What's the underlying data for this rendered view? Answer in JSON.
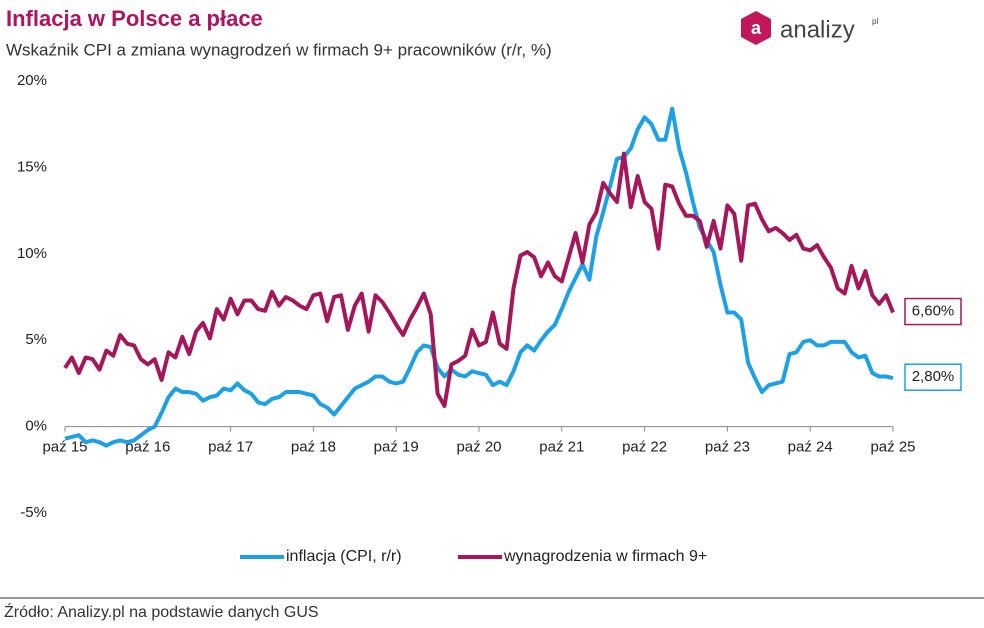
{
  "chart_data": {
    "type": "line",
    "title": "Inflacja w Polsce a płace",
    "subtitle": "Wskaźnik CPI a zmiana wynagrodzeń w firmach 9+ pracowników (r/r, %)",
    "source": "Źródło: Analizy.pl na podstawie danych GUS",
    "logo_icon": "a",
    "logo_text": "analizy",
    "logo_suffix": "pl",
    "categories": [
      "paź 15",
      null,
      null,
      null,
      null,
      null,
      null,
      null,
      null,
      null,
      null,
      null,
      "paź 16",
      null,
      null,
      null,
      null,
      null,
      null,
      null,
      null,
      null,
      null,
      null,
      "paź 17",
      null,
      null,
      null,
      null,
      null,
      null,
      null,
      null,
      null,
      null,
      null,
      "paź 18",
      null,
      null,
      null,
      null,
      null,
      null,
      null,
      null,
      null,
      null,
      null,
      "paź 19",
      null,
      null,
      null,
      null,
      null,
      null,
      null,
      null,
      null,
      null,
      null,
      "paź 20",
      null,
      null,
      null,
      null,
      null,
      null,
      null,
      null,
      null,
      null,
      null,
      "paź 21",
      null,
      null,
      null,
      null,
      null,
      null,
      null,
      null,
      null,
      null,
      null,
      "paź 22",
      null,
      null,
      null,
      null,
      null,
      null,
      null,
      null,
      null,
      null,
      null,
      "paź 23",
      null,
      null,
      null,
      null,
      null,
      null,
      null,
      null,
      null,
      null,
      null,
      "paź 24",
      null,
      null,
      null,
      null,
      null,
      null,
      null,
      null,
      null,
      null,
      null,
      "paź 25"
    ],
    "series": [
      {
        "name": "inflacja (CPI, r/r)",
        "color": "#1ea0e6",
        "values": [
          -0.7,
          -0.6,
          -0.5,
          -0.9,
          -0.8,
          -0.9,
          -1.1,
          -0.9,
          -0.8,
          -0.9,
          -0.8,
          -0.5,
          -0.2,
          0.0,
          0.8,
          1.7,
          2.2,
          2.0,
          2.0,
          1.9,
          1.5,
          1.7,
          1.8,
          2.2,
          2.1,
          2.5,
          2.1,
          1.9,
          1.4,
          1.3,
          1.6,
          1.7,
          2.0,
          2.0,
          2.0,
          1.9,
          1.8,
          1.3,
          1.1,
          0.7,
          1.2,
          1.7,
          2.2,
          2.4,
          2.6,
          2.9,
          2.9,
          2.6,
          2.5,
          2.6,
          3.4,
          4.3,
          4.7,
          4.6,
          3.4,
          2.9,
          3.3,
          3.0,
          2.9,
          3.2,
          3.1,
          3.0,
          2.4,
          2.6,
          2.4,
          3.2,
          4.3,
          4.7,
          4.4,
          5.0,
          5.5,
          5.9,
          6.8,
          7.8,
          8.6,
          9.4,
          8.5,
          11.0,
          12.4,
          13.9,
          15.5,
          15.6,
          16.1,
          17.2,
          17.9,
          17.5,
          16.6,
          16.6,
          18.4,
          16.1,
          14.7,
          13.0,
          11.5,
          10.8,
          10.1,
          8.2,
          6.6,
          6.6,
          6.2,
          3.7,
          2.8,
          2.0,
          2.4,
          2.5,
          2.6,
          4.2,
          4.3,
          4.9,
          5.0,
          4.7,
          4.7,
          4.9,
          4.9,
          4.9,
          4.3,
          4.0,
          4.1,
          3.1,
          2.9,
          2.9,
          2.8
        ],
        "value_labels": [
          null,
          null,
          null,
          null,
          null,
          null,
          null,
          null,
          null,
          null,
          null,
          null,
          null,
          null,
          null,
          null,
          null,
          null,
          null,
          null,
          null,
          null,
          null,
          null,
          null,
          null,
          null,
          null,
          null,
          null,
          null,
          null,
          null,
          null,
          null,
          null,
          null,
          null,
          null,
          null,
          null,
          null,
          null,
          null,
          null,
          null,
          null,
          null,
          null,
          null,
          null,
          null,
          null,
          null,
          null,
          null,
          null,
          null,
          null,
          null,
          null,
          null,
          null,
          null,
          null,
          null,
          null,
          null,
          null,
          null,
          null,
          null,
          null,
          null,
          null,
          null,
          null,
          null,
          null,
          null,
          null,
          null,
          null,
          null,
          null,
          null,
          null,
          null,
          null,
          null,
          null,
          null,
          null,
          null,
          null,
          null,
          null,
          null,
          null,
          null,
          null,
          null,
          null,
          null,
          null,
          null,
          null,
          null,
          null,
          null,
          null,
          null,
          null,
          null,
          null,
          null,
          null,
          null,
          null,
          null,
          "2,80%"
        ]
      },
      {
        "name": "wynagrodzenia w firmach 9+",
        "color": "#a5175a",
        "values": [
          3.4,
          4.0,
          3.1,
          4.0,
          3.9,
          3.3,
          4.4,
          4.1,
          5.3,
          4.8,
          4.7,
          3.9,
          3.6,
          3.9,
          2.7,
          4.3,
          4.0,
          5.2,
          4.2,
          5.5,
          6.0,
          5.1,
          6.8,
          6.2,
          7.4,
          6.5,
          7.3,
          7.3,
          6.8,
          6.7,
          7.8,
          7.0,
          7.5,
          7.3,
          7.0,
          6.8,
          7.6,
          7.7,
          6.1,
          7.5,
          7.6,
          5.6,
          7.0,
          7.7,
          5.5,
          7.6,
          7.2,
          6.6,
          5.9,
          5.3,
          6.2,
          6.9,
          7.7,
          6.5,
          1.9,
          1.2,
          3.6,
          3.8,
          4.1,
          5.6,
          4.7,
          4.9,
          6.6,
          4.8,
          4.5,
          8.0,
          9.9,
          10.1,
          9.8,
          8.7,
          9.5,
          8.7,
          8.4,
          9.8,
          11.2,
          9.5,
          11.7,
          12.4,
          14.1,
          13.5,
          13.0,
          15.8,
          12.7,
          14.5,
          13.0,
          12.6,
          10.3,
          14.0,
          13.9,
          12.9,
          12.2,
          12.2,
          11.9,
          10.4,
          11.9,
          10.3,
          12.8,
          12.3,
          9.6,
          12.8,
          12.9,
          12.0,
          11.3,
          11.5,
          11.2,
          10.8,
          11.1,
          10.3,
          10.2,
          10.5,
          9.8,
          9.2,
          8.0,
          7.7,
          9.3,
          8.0,
          9.0,
          7.6,
          7.1,
          7.6,
          6.6
        ],
        "value_labels": [
          null,
          null,
          null,
          null,
          null,
          null,
          null,
          null,
          null,
          null,
          null,
          null,
          null,
          null,
          null,
          null,
          null,
          null,
          null,
          null,
          null,
          null,
          null,
          null,
          null,
          null,
          null,
          null,
          null,
          null,
          null,
          null,
          null,
          null,
          null,
          null,
          null,
          null,
          null,
          null,
          null,
          null,
          null,
          null,
          null,
          null,
          null,
          null,
          null,
          null,
          null,
          null,
          null,
          null,
          null,
          null,
          null,
          null,
          null,
          null,
          null,
          null,
          null,
          null,
          null,
          null,
          null,
          null,
          null,
          null,
          null,
          null,
          null,
          null,
          null,
          null,
          null,
          null,
          null,
          null,
          null,
          null,
          null,
          null,
          null,
          null,
          null,
          null,
          null,
          null,
          null,
          null,
          null,
          null,
          null,
          null,
          null,
          null,
          null,
          null,
          null,
          null,
          null,
          null,
          null,
          null,
          null,
          null,
          null,
          null,
          null,
          null,
          null,
          null,
          null,
          null,
          null,
          null,
          null,
          null,
          "6,60%"
        ]
      }
    ],
    "ylim": [
      -5,
      20
    ],
    "yticks": [
      {
        "value": -5,
        "label": "-5%"
      },
      {
        "value": 0,
        "label": "0%"
      },
      {
        "value": 5,
        "label": "5%"
      },
      {
        "value": 10,
        "label": "10%"
      },
      {
        "value": 15,
        "label": "15%"
      },
      {
        "value": 20,
        "label": "20%"
      }
    ],
    "grid": false,
    "legend": "bottom"
  }
}
